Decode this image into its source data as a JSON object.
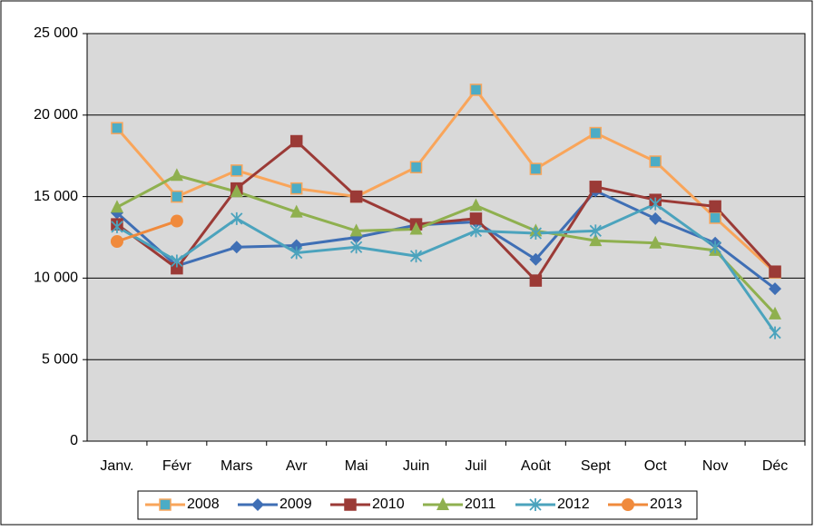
{
  "chart_data": {
    "type": "line",
    "categories": [
      "Janv.",
      "Févr",
      "Mars",
      "Avr",
      "Mai",
      "Juin",
      "Juil",
      "Août",
      "Sept",
      "Oct",
      "Nov",
      "Déc"
    ],
    "series": [
      {
        "name": "2008",
        "color": "#F9A55A",
        "marker": "square",
        "marker_fill": "#4BACC6",
        "values": [
          19200,
          15000,
          16600,
          15500,
          15000,
          16800,
          21550,
          16700,
          18900,
          17150,
          13700,
          10350
        ]
      },
      {
        "name": "2009",
        "color": "#3F6FB5",
        "marker": "diamond",
        "values": [
          14000,
          10750,
          11900,
          12000,
          12500,
          13250,
          13450,
          11150,
          15350,
          13650,
          12150,
          9350
        ]
      },
      {
        "name": "2010",
        "color": "#9B3A36",
        "marker": "square",
        "values": [
          13300,
          10600,
          15500,
          18400,
          15000,
          13300,
          13650,
          9850,
          15600,
          14800,
          14400,
          10400
        ]
      },
      {
        "name": "2011",
        "color": "#8FB04F",
        "marker": "triangle",
        "values": [
          14350,
          16300,
          15300,
          14050,
          12900,
          13000,
          14450,
          12900,
          12300,
          12150,
          11700,
          7800
        ]
      },
      {
        "name": "2012",
        "color": "#4BA3BD",
        "marker": "star",
        "values": [
          13150,
          11050,
          13650,
          11550,
          11900,
          11350,
          12900,
          12750,
          12900,
          14550,
          11900,
          6650
        ]
      },
      {
        "name": "2013",
        "color": "#F08A3C",
        "marker": "circle",
        "values": [
          12250,
          13500,
          null,
          null,
          null,
          null,
          null,
          null,
          null,
          null,
          null,
          null
        ]
      }
    ],
    "ylim": [
      0,
      25000
    ],
    "yticks": [
      0,
      {
        "value": 5000,
        "label": "5 000"
      },
      {
        "value": 10000,
        "label": "10 000"
      },
      {
        "value": 15000,
        "label": "15 000"
      },
      {
        "value": 20000,
        "label": "20 000"
      },
      {
        "value": 25000,
        "label": "25 000"
      }
    ],
    "grid": true,
    "legend": "bottom"
  }
}
